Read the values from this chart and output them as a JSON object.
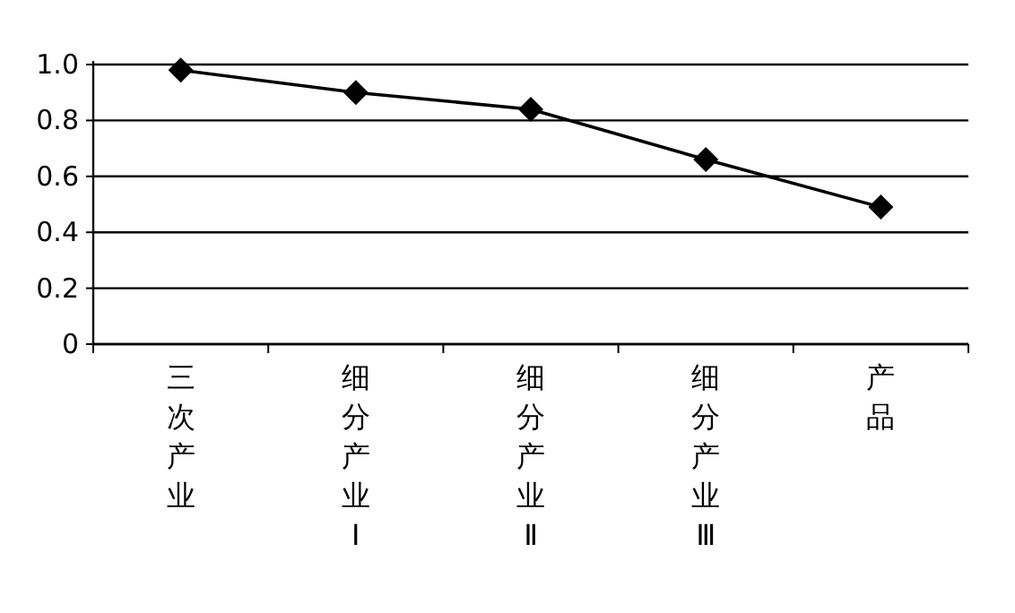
{
  "chart_data": {
    "type": "line",
    "categories": [
      "三次产业",
      "细分产业Ⅰ",
      "细分产业Ⅱ",
      "细分产业Ⅲ",
      "产品"
    ],
    "series": [
      {
        "color": "#000000",
        "values": [
          0.98,
          0.9,
          0.84,
          0.66,
          0.49
        ]
      }
    ],
    "ylim": [
      0,
      1
    ],
    "yticks": [
      0,
      0.2,
      0.4,
      0.6,
      0.8,
      {
        "value": 1,
        "label": "1.0"
      }
    ],
    "grid": "y",
    "marker": "diamond",
    "line_style": "solid"
  }
}
